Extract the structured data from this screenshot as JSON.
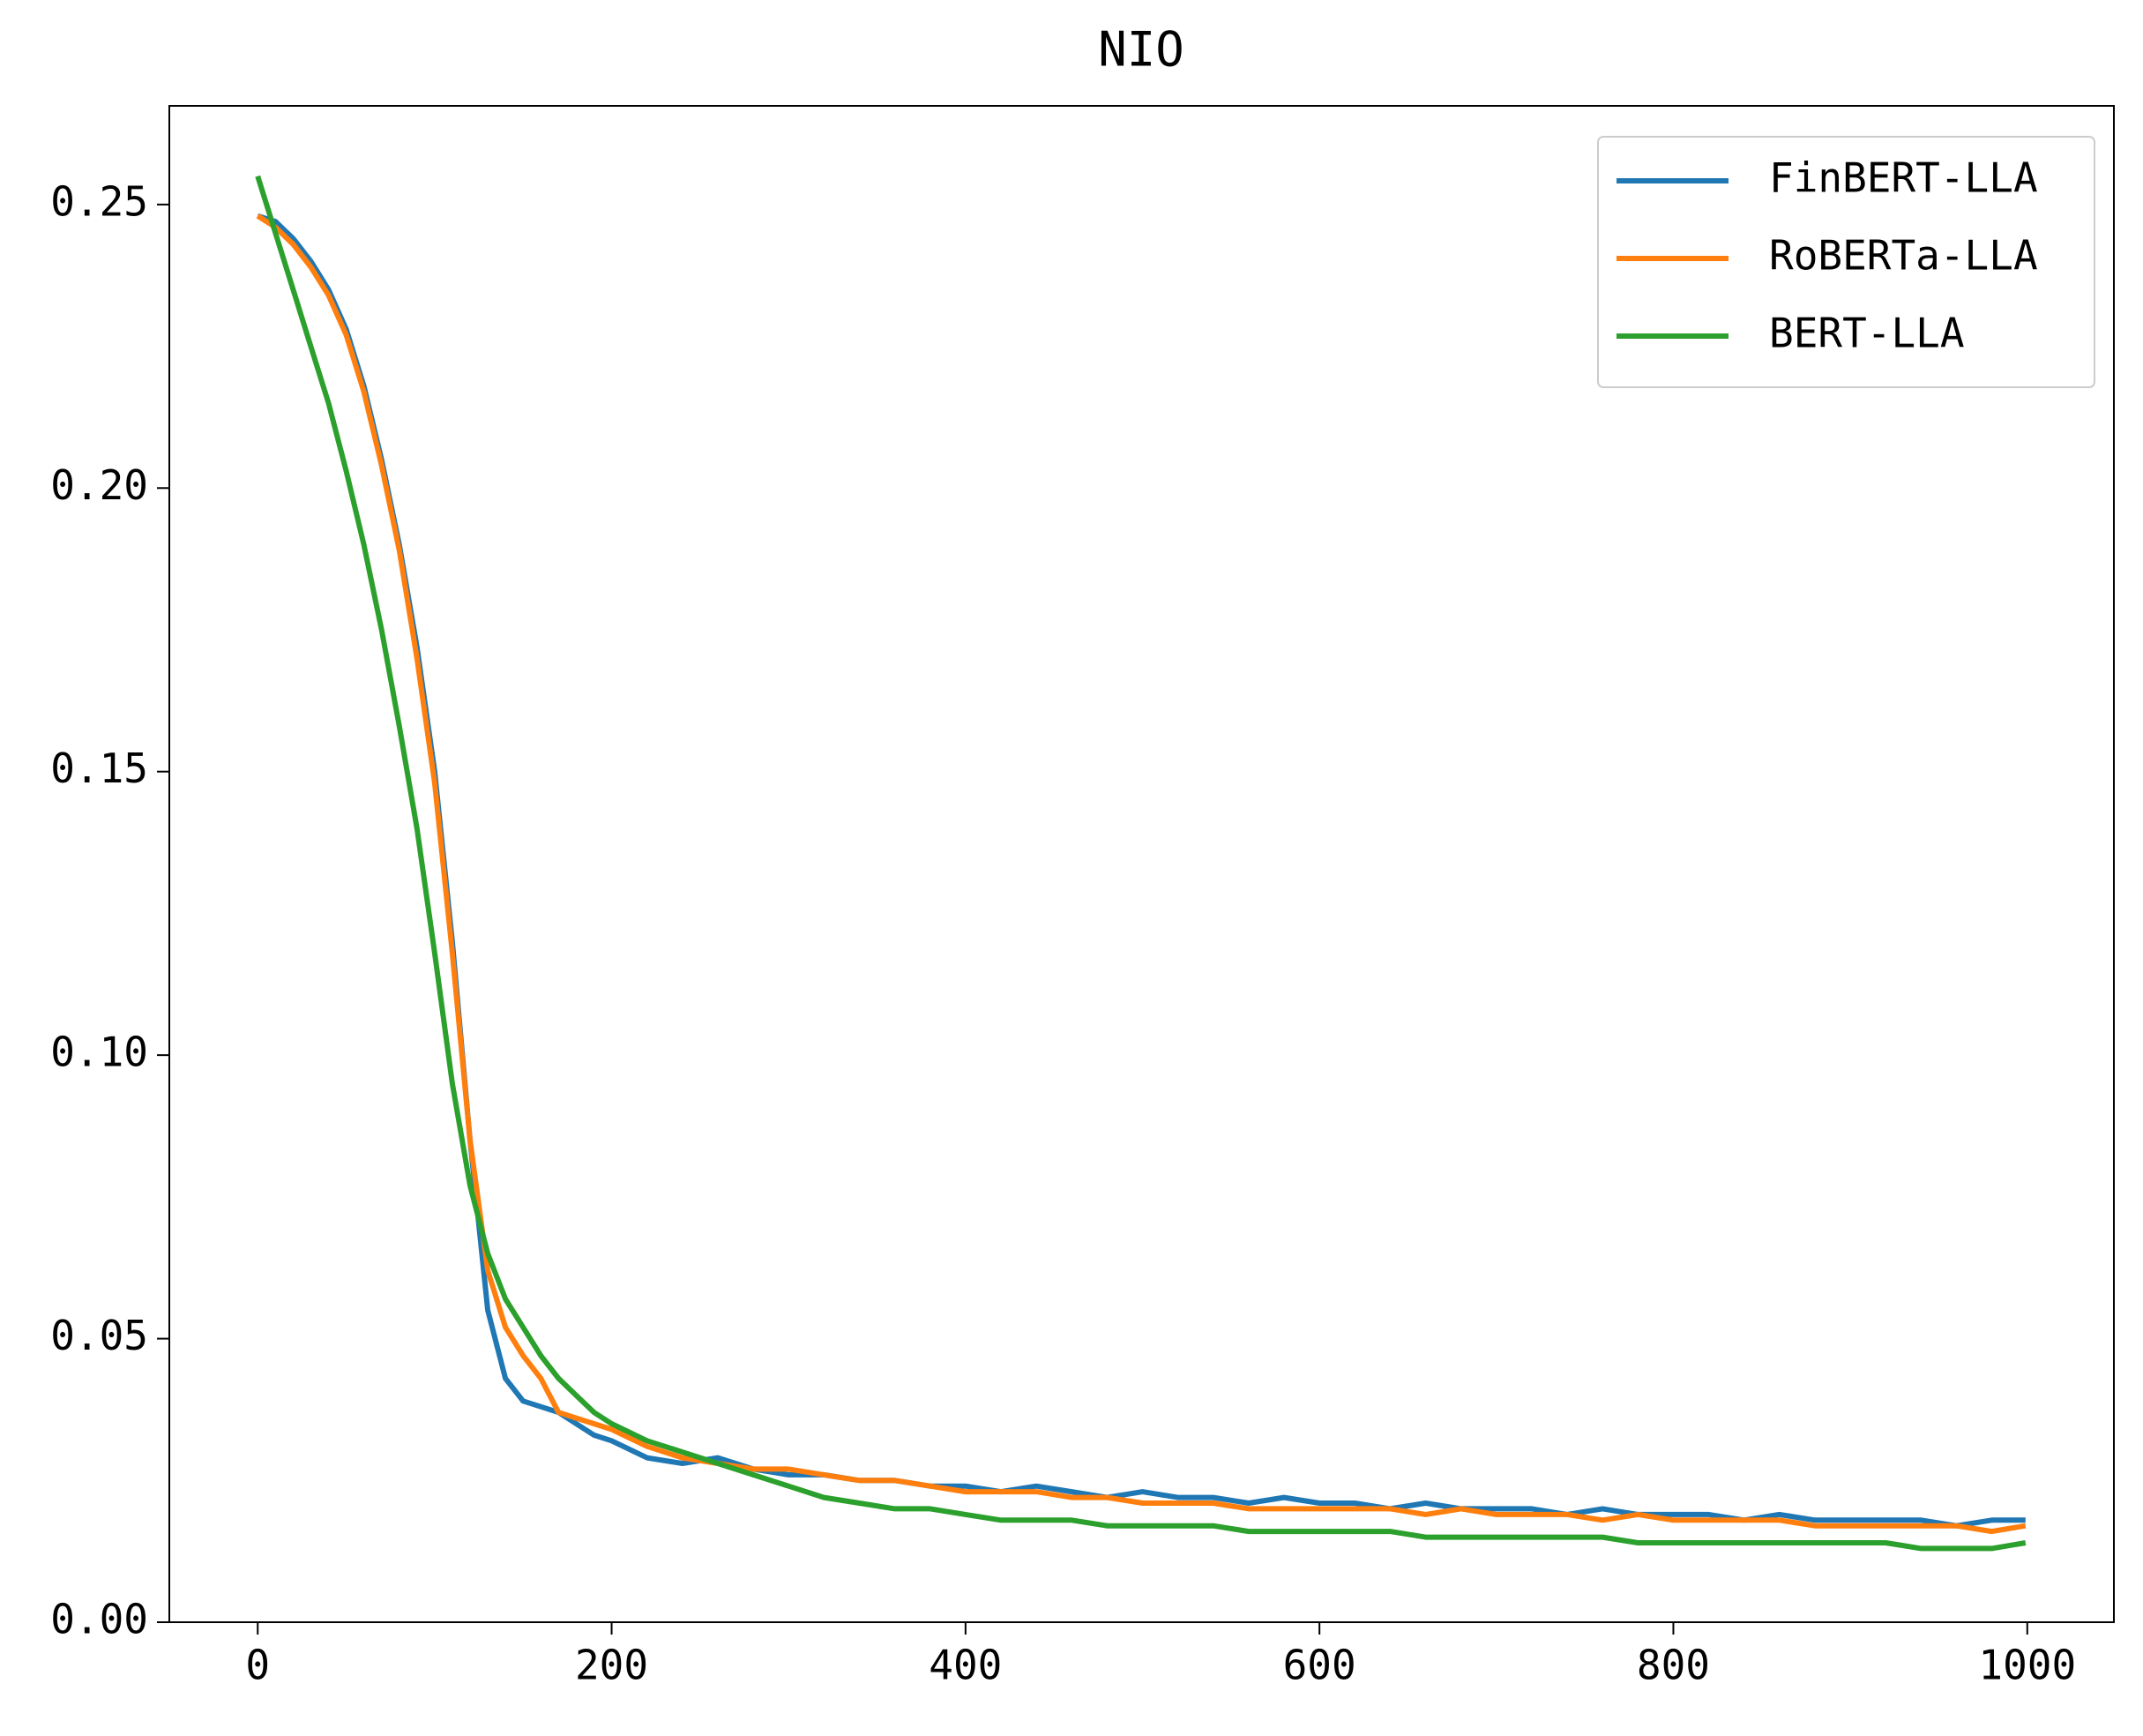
{
  "chart_data": {
    "type": "line",
    "title": "NIO",
    "x": [
      0,
      10,
      20,
      30,
      40,
      50,
      60,
      70,
      80,
      90,
      100,
      110,
      120,
      130,
      140,
      150,
      160,
      170,
      180,
      190,
      200,
      220,
      240,
      260,
      280,
      300,
      320,
      340,
      360,
      380,
      400,
      420,
      440,
      460,
      480,
      500,
      520,
      540,
      560,
      580,
      600,
      620,
      640,
      660,
      680,
      700,
      720,
      740,
      760,
      780,
      800,
      820,
      840,
      860,
      880,
      900,
      920,
      940,
      960,
      980,
      999
    ],
    "series": [
      {
        "name": "FinBERT-LLA",
        "color": "#1f77b4",
        "values": [
          0.248,
          0.247,
          0.244,
          0.24,
          0.235,
          0.228,
          0.218,
          0.205,
          0.19,
          0.172,
          0.15,
          0.12,
          0.085,
          0.055,
          0.043,
          0.039,
          0.038,
          0.037,
          0.035,
          0.033,
          0.032,
          0.029,
          0.028,
          0.029,
          0.027,
          0.026,
          0.026,
          0.025,
          0.025,
          0.024,
          0.024,
          0.023,
          0.024,
          0.023,
          0.022,
          0.023,
          0.022,
          0.022,
          0.021,
          0.022,
          0.021,
          0.021,
          0.02,
          0.021,
          0.02,
          0.02,
          0.02,
          0.019,
          0.02,
          0.019,
          0.019,
          0.019,
          0.018,
          0.019,
          0.018,
          0.018,
          0.018,
          0.018,
          0.017,
          0.018,
          0.018
        ]
      },
      {
        "name": "RoBERTa-LLA",
        "color": "#ff7f0e",
        "values": [
          0.248,
          0.246,
          0.243,
          0.239,
          0.234,
          0.227,
          0.217,
          0.204,
          0.189,
          0.17,
          0.148,
          0.118,
          0.085,
          0.062,
          0.052,
          0.047,
          0.043,
          0.037,
          0.036,
          0.035,
          0.034,
          0.031,
          0.029,
          0.028,
          0.027,
          0.027,
          0.026,
          0.025,
          0.025,
          0.024,
          0.023,
          0.023,
          0.023,
          0.022,
          0.022,
          0.021,
          0.021,
          0.021,
          0.02,
          0.02,
          0.02,
          0.02,
          0.02,
          0.019,
          0.02,
          0.019,
          0.019,
          0.019,
          0.018,
          0.019,
          0.018,
          0.018,
          0.018,
          0.018,
          0.017,
          0.017,
          0.017,
          0.017,
          0.017,
          0.016,
          0.017
        ]
      },
      {
        "name": "BERT-LLA",
        "color": "#2ca02c",
        "values": [
          0.255,
          0.245,
          0.235,
          0.225,
          0.215,
          0.203,
          0.19,
          0.175,
          0.158,
          0.14,
          0.118,
          0.095,
          0.077,
          0.065,
          0.057,
          0.052,
          0.047,
          0.043,
          0.04,
          0.037,
          0.035,
          0.032,
          0.03,
          0.028,
          0.026,
          0.024,
          0.022,
          0.021,
          0.02,
          0.02,
          0.019,
          0.018,
          0.018,
          0.018,
          0.017,
          0.017,
          0.017,
          0.017,
          0.016,
          0.016,
          0.016,
          0.016,
          0.016,
          0.015,
          0.015,
          0.015,
          0.015,
          0.015,
          0.015,
          0.014,
          0.014,
          0.014,
          0.014,
          0.014,
          0.014,
          0.014,
          0.014,
          0.013,
          0.013,
          0.013,
          0.014
        ]
      }
    ],
    "xlim": [
      -49.95,
      1048.95
    ],
    "xticks": [
      0,
      200,
      400,
      600,
      800,
      1000
    ],
    "ylim": [
      0,
      0.2674
    ],
    "yticks": [
      {
        "value": 0,
        "label": "0.00"
      },
      0.05,
      {
        "value": 0.1,
        "label": "0.10"
      },
      0.15,
      {
        "value": 0.2,
        "label": "0.20"
      },
      0.25
    ],
    "legend": "upper right",
    "grid": false
  }
}
